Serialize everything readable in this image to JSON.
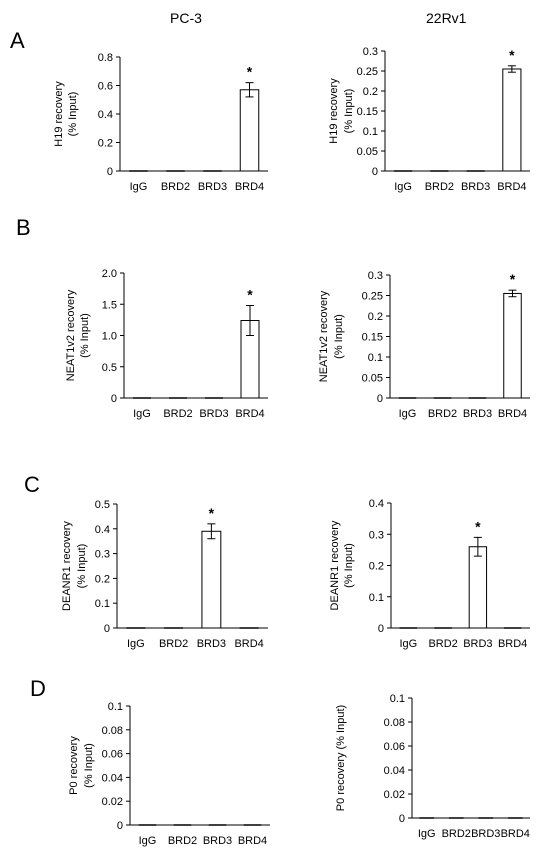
{
  "columns": [
    "PC-3",
    "22Rv1"
  ],
  "panels": [
    {
      "letter": "A"
    },
    {
      "letter": "B"
    },
    {
      "letter": "C"
    },
    {
      "letter": "D"
    }
  ],
  "chart_data": [
    {
      "type": "bar",
      "panel": "A",
      "column": "PC-3",
      "categories": [
        "IgG",
        "BRD2",
        "BRD3",
        "BRD4"
      ],
      "values": [
        0,
        0,
        0,
        0.57
      ],
      "errors": [
        0,
        0,
        0,
        0.05
      ],
      "significance": [
        "",
        "",
        "",
        "*"
      ],
      "ylabel_lines": [
        "H19 recovery",
        "(% Input)"
      ],
      "ylim": [
        0,
        0.8
      ],
      "yticks": [
        "0",
        "0.2",
        "0.4",
        "0.6",
        "0.8"
      ]
    },
    {
      "type": "bar",
      "panel": "A",
      "column": "22Rv1",
      "categories": [
        "IgG",
        "BRD2",
        "BRD3",
        "BRD4"
      ],
      "values": [
        0,
        0,
        0,
        0.255
      ],
      "errors": [
        0,
        0,
        0,
        0.008
      ],
      "significance": [
        "",
        "",
        "",
        "*"
      ],
      "ylabel_lines": [
        "H19 recovery",
        "(% Input)"
      ],
      "ylim": [
        0,
        0.3
      ],
      "yticks": [
        "0",
        "0.05",
        "0.1",
        "0.15",
        "0.2",
        "0.25",
        "0.3"
      ]
    },
    {
      "type": "bar",
      "panel": "B",
      "column": "PC-3",
      "categories": [
        "IgG",
        "BRD2",
        "BRD3",
        "BRD4"
      ],
      "values": [
        0,
        0,
        0,
        1.24
      ],
      "errors": [
        0,
        0,
        0,
        0.24
      ],
      "significance": [
        "",
        "",
        "",
        "*"
      ],
      "ylabel_lines": [
        "NEAT1v2 recovery",
        "(% Input)"
      ],
      "ylim": [
        0,
        2.0
      ],
      "yticks": [
        "0",
        "0.5",
        "1.0",
        "1.5",
        "2.0"
      ]
    },
    {
      "type": "bar",
      "panel": "B",
      "column": "22Rv1",
      "categories": [
        "IgG",
        "BRD2",
        "BRD3",
        "BRD4"
      ],
      "values": [
        0,
        0,
        0,
        0.255
      ],
      "errors": [
        0,
        0,
        0,
        0.008
      ],
      "significance": [
        "",
        "",
        "",
        "*"
      ],
      "ylabel_lines": [
        "NEAT1v2 recovery",
        "(% Input)"
      ],
      "ylim": [
        0,
        0.3
      ],
      "yticks": [
        "0",
        "0.05",
        "0.1",
        "0.15",
        "0.2",
        "0.25",
        "0.3"
      ]
    },
    {
      "type": "bar",
      "panel": "C",
      "column": "PC-3",
      "categories": [
        "IgG",
        "BRD2",
        "BRD3",
        "BRD4"
      ],
      "values": [
        0,
        0,
        0.39,
        0
      ],
      "errors": [
        0,
        0,
        0.03,
        0
      ],
      "significance": [
        "",
        "",
        "*",
        ""
      ],
      "ylabel_lines": [
        "DEANR1 recovery",
        "(% Input)"
      ],
      "ylim": [
        0,
        0.5
      ],
      "yticks": [
        "0",
        "0.1",
        "0.2",
        "0.3",
        "0.4",
        "0.5"
      ]
    },
    {
      "type": "bar",
      "panel": "C",
      "column": "22Rv1",
      "categories": [
        "IgG",
        "BRD2",
        "BRD3",
        "BRD4"
      ],
      "values": [
        0,
        0,
        0.26,
        0
      ],
      "errors": [
        0,
        0,
        0.03,
        0
      ],
      "significance": [
        "",
        "",
        "*",
        ""
      ],
      "ylabel_lines": [
        "DEANR1 recovery",
        "(% Input)"
      ],
      "ylim": [
        0,
        0.4
      ],
      "yticks": [
        "0",
        "0.1",
        "0.2",
        "0.3",
        "0.4"
      ]
    },
    {
      "type": "bar",
      "panel": "D",
      "column": "PC-3",
      "categories": [
        "IgG",
        "BRD2",
        "BRD3",
        "BRD4"
      ],
      "values": [
        0,
        0,
        0,
        0
      ],
      "errors": [
        0,
        0,
        0,
        0
      ],
      "significance": [
        "",
        "",
        "",
        ""
      ],
      "ylabel_lines": [
        "P0 recovery",
        "(% Input)"
      ],
      "ylim": [
        0,
        0.1
      ],
      "yticks": [
        "0",
        "0.02",
        "0.04",
        "0.06",
        "0.08",
        "0.1"
      ]
    },
    {
      "type": "bar",
      "panel": "D",
      "column": "22Rv1",
      "categories": [
        "IgG",
        "BRD2",
        "BRD3",
        "BRD4"
      ],
      "values": [
        0,
        0,
        0,
        0
      ],
      "errors": [
        0,
        0,
        0,
        0
      ],
      "significance": [
        "",
        "",
        "",
        ""
      ],
      "ylabel_lines": [
        "P0 recovery (% Input)"
      ],
      "ylim": [
        0,
        0.1
      ],
      "yticks": [
        "0",
        "0.02",
        "0.04",
        "0.06",
        "0.08",
        "0.1"
      ]
    }
  ]
}
